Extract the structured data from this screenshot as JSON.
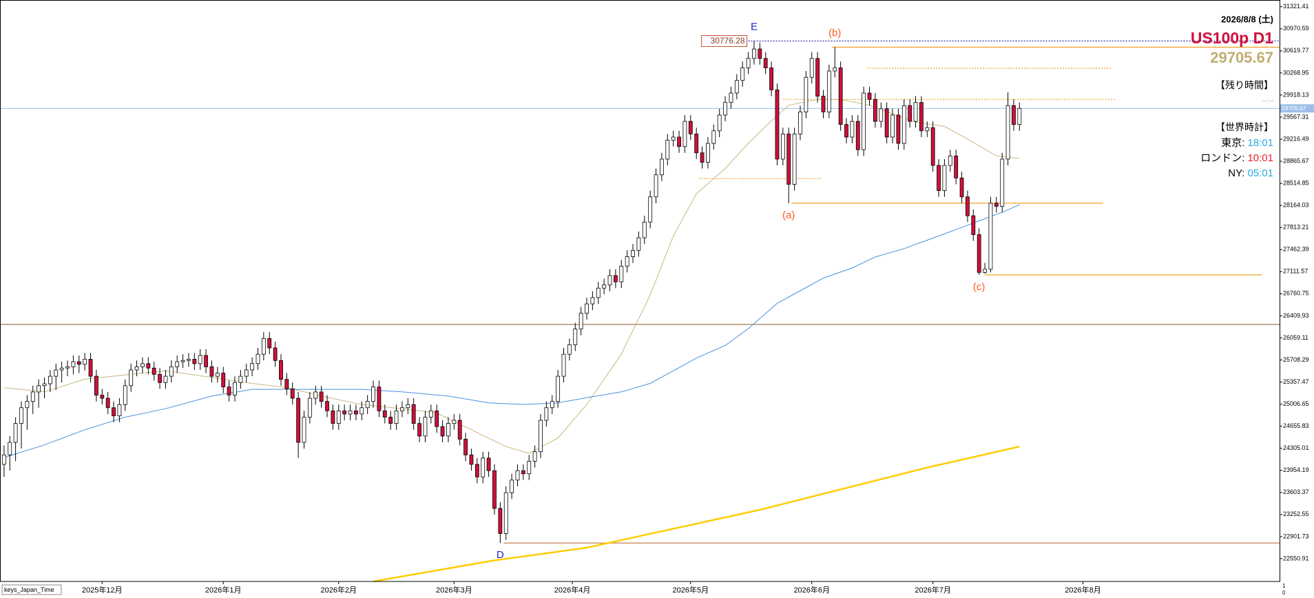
{
  "chart_data": {
    "type": "candlestick",
    "symbol": "US100p D1",
    "date": "2026/8/8 (土)",
    "up_color": "#ffffff",
    "down_color": "#d0103a",
    "last_price_color": "#9dbfe9",
    "xlim": [
      -0.7,
      221.2
    ],
    "xticks": [
      {
        "value": 17,
        "label": "2025年12月"
      },
      {
        "value": 38,
        "label": "2026年1月"
      },
      {
        "value": 58,
        "label": "2026年2月"
      },
      {
        "value": 78,
        "label": "2026年3月"
      },
      {
        "value": 98.5,
        "label": "2026年4月"
      },
      {
        "value": 119,
        "label": "2026年5月"
      },
      {
        "value": 140,
        "label": "2026年6月"
      },
      {
        "value": 161,
        "label": "2026年7月"
      },
      {
        "value": 187,
        "label": "2026年8月"
      }
    ],
    "ylim": [
      22189,
      31428
    ],
    "yticks": [
      31321.41,
      30970.59,
      30619.77,
      30268.95,
      29918.13,
      29567.31,
      29216.49,
      28865.67,
      28514.85,
      28164.03,
      27813.21,
      27462.39,
      27111.57,
      26760.75,
      26409.93,
      26059.11,
      25708.29,
      25357.47,
      25006.65,
      24655.83,
      24305.01,
      23954.19,
      23603.37,
      23252.55,
      22901.73,
      22550.91
    ],
    "open": [
      24050,
      24200,
      24400,
      24700,
      24950,
      25050,
      25200,
      25300,
      25330,
      25450,
      25550,
      25580,
      25600,
      25680,
      25640,
      25720,
      25450,
      25150,
      25100,
      24950,
      24820,
      25000,
      25300,
      25550,
      25600,
      25650,
      25580,
      25480,
      25350,
      25450,
      25600,
      25680,
      25700,
      25720,
      25650,
      25780,
      25600,
      25450,
      25500,
      25280,
      25150,
      25350,
      25450,
      25550,
      25650,
      25800,
      26050,
      25900,
      25700,
      25400,
      25250,
      25100,
      24400,
      24800,
      25100,
      25200,
      25050,
      24900,
      24700,
      24900,
      24850,
      24900,
      24850,
      24950,
      25050,
      25280,
      24900,
      24800,
      24700,
      24900,
      24950,
      25000,
      24700,
      24500,
      24800,
      24900,
      24650,
      24500,
      24700,
      24750,
      24450,
      24200,
      24050,
      23850,
      24150,
      23950,
      23350,
      22950,
      23600,
      23800,
      23950,
      23900,
      24100,
      24250,
      24750,
      24950,
      25050,
      25450,
      25800,
      25950,
      26200,
      26450,
      26600,
      26700,
      26850,
      26900,
      27050,
      26950,
      27200,
      27350,
      27450,
      27650,
      27900,
      28300,
      28650,
      28900,
      29200,
      29250,
      29100,
      29500,
      29300,
      29000,
      28850,
      29150,
      29350,
      29600,
      29800,
      29950,
      30150,
      30350,
      30500,
      30650,
      30500,
      30350,
      30000,
      28900,
      29300,
      28500,
      29300,
      29650,
      30200,
      30500,
      29900,
      29650,
      30300,
      30350,
      29450,
      29250,
      29500,
      29050,
      29950,
      29850,
      29500,
      29700,
      29250,
      29600,
      29150,
      29750,
      29500,
      29800,
      29350,
      29400,
      28800,
      28400,
      28800,
      28950,
      28600,
      28300,
      28000,
      27700,
      27100,
      27150,
      28200,
      28150,
      28900,
      29750,
      29450
    ],
    "high": [
      24350,
      24500,
      24800,
      25050,
      25150,
      25300,
      25400,
      25430,
      25550,
      25650,
      25680,
      25700,
      25780,
      25780,
      25820,
      25820,
      25550,
      25250,
      25200,
      25050,
      25100,
      25400,
      25650,
      25700,
      25750,
      25750,
      25680,
      25580,
      25550,
      25700,
      25780,
      25800,
      25820,
      25820,
      25880,
      25880,
      25700,
      25600,
      25600,
      25380,
      25450,
      25550,
      25650,
      25750,
      25900,
      26150,
      26150,
      26000,
      25800,
      25500,
      25350,
      25200,
      24900,
      25200,
      25300,
      25300,
      25150,
      25000,
      25000,
      25000,
      25000,
      25000,
      25050,
      25150,
      25380,
      25380,
      25000,
      24900,
      25000,
      25050,
      25100,
      25100,
      24800,
      24900,
      25000,
      25000,
      24750,
      24800,
      24850,
      24850,
      24550,
      24300,
      24150,
      24250,
      24250,
      24050,
      23450,
      23700,
      23900,
      24050,
      24050,
      24200,
      24350,
      24850,
      25050,
      25150,
      25550,
      25900,
      26050,
      26300,
      26550,
      26700,
      26800,
      26950,
      27000,
      27150,
      27150,
      27300,
      27450,
      27550,
      27750,
      28000,
      28400,
      28750,
      29000,
      29300,
      29350,
      29350,
      29600,
      29600,
      29400,
      29100,
      29250,
      29450,
      29700,
      29900,
      30050,
      30250,
      30450,
      30600,
      30776.28,
      30750,
      30600,
      30450,
      30100,
      29400,
      29400,
      29400,
      29750,
      30300,
      30600,
      30600,
      30000,
      30400,
      30678,
      30450,
      29550,
      29600,
      29600,
      30050,
      30050,
      29950,
      29800,
      29800,
      29700,
      29700,
      29850,
      29850,
      29900,
      29900,
      29500,
      29500,
      28900,
      28900,
      29050,
      29050,
      28700,
      28400,
      28100,
      27800,
      27250,
      28300,
      28300,
      29000,
      29960,
      29850,
      29800
    ],
    "low": [
      23850,
      23950,
      24100,
      24300,
      24600,
      24850,
      24950,
      25100,
      25200,
      25230,
      25350,
      25450,
      25480,
      25500,
      25540,
      25350,
      25050,
      25000,
      24850,
      24720,
      24720,
      24900,
      25200,
      25450,
      25500,
      25480,
      25380,
      25250,
      25250,
      25350,
      25500,
      25580,
      25600,
      25550,
      25550,
      25500,
      25350,
      25350,
      25180,
      25050,
      25050,
      25250,
      25350,
      25450,
      25550,
      25700,
      25800,
      25600,
      25300,
      25150,
      25000,
      24150,
      24300,
      24700,
      25000,
      24950,
      24800,
      24600,
      24600,
      24750,
      24750,
      24750,
      24750,
      24850,
      24950,
      24800,
      24700,
      24600,
      24600,
      24800,
      24850,
      24600,
      24400,
      24400,
      24700,
      24550,
      24400,
      24400,
      24600,
      24350,
      24100,
      23950,
      23750,
      23750,
      23850,
      23250,
      22800,
      22850,
      23500,
      23700,
      23800,
      23800,
      24000,
      24150,
      24650,
      24850,
      24950,
      25350,
      25700,
      25850,
      26100,
      26350,
      26500,
      26600,
      26750,
      26800,
      26850,
      26850,
      27100,
      27250,
      27350,
      27550,
      27800,
      28200,
      28550,
      28800,
      29100,
      29000,
      29000,
      29200,
      28900,
      28750,
      28750,
      29050,
      29250,
      29500,
      29700,
      29850,
      30050,
      30250,
      30400,
      30400,
      30250,
      29900,
      28800,
      28800,
      28200,
      28400,
      29200,
      29550,
      30100,
      29800,
      29550,
      29550,
      30200,
      29350,
      29150,
      29150,
      28950,
      28950,
      29750,
      29400,
      29400,
      29150,
      29150,
      29050,
      29050,
      29400,
      29400,
      29250,
      29250,
      28700,
      28300,
      28300,
      28700,
      28500,
      28200,
      27900,
      27600,
      27060,
      27080,
      27100,
      28050,
      28050,
      28800,
      29350,
      29350
    ],
    "close": [
      24200,
      24400,
      24700,
      24950,
      25050,
      25200,
      25300,
      25330,
      25450,
      25550,
      25580,
      25600,
      25680,
      25640,
      25720,
      25450,
      25150,
      25100,
      24950,
      24820,
      25000,
      25300,
      25550,
      25600,
      25650,
      25580,
      25480,
      25350,
      25450,
      25600,
      25680,
      25700,
      25720,
      25650,
      25780,
      25600,
      25450,
      25500,
      25280,
      25150,
      25350,
      25450,
      25550,
      25650,
      25800,
      26050,
      25900,
      25700,
      25400,
      25250,
      25100,
      24400,
      24800,
      25100,
      25200,
      25050,
      24900,
      24700,
      24900,
      24850,
      24900,
      24850,
      24950,
      25050,
      25280,
      24900,
      24800,
      24700,
      24900,
      24950,
      25000,
      24700,
      24500,
      24800,
      24900,
      24650,
      24500,
      24700,
      24750,
      24450,
      24200,
      24050,
      23850,
      24150,
      23950,
      23350,
      22950,
      23600,
      23800,
      23950,
      23900,
      24100,
      24250,
      24750,
      24950,
      25050,
      25450,
      25800,
      25950,
      26200,
      26450,
      26600,
      26700,
      26850,
      26900,
      27050,
      26950,
      27200,
      27350,
      27450,
      27650,
      27900,
      28300,
      28650,
      28900,
      29200,
      29250,
      29100,
      29500,
      29300,
      29000,
      28850,
      29150,
      29350,
      29600,
      29800,
      29950,
      30150,
      30350,
      30500,
      30650,
      30500,
      30350,
      30000,
      28900,
      29300,
      28500,
      29300,
      29650,
      30200,
      30500,
      29900,
      29650,
      30300,
      30350,
      29450,
      29250,
      29500,
      29050,
      29950,
      29850,
      29500,
      29700,
      29250,
      29600,
      29150,
      29750,
      29500,
      29800,
      29350,
      29400,
      28800,
      28400,
      28800,
      28950,
      28600,
      28300,
      28000,
      27700,
      27100,
      27150,
      28200,
      28150,
      28900,
      29750,
      29450,
      29705.67
    ],
    "moving_averages": [
      {
        "color": "#c9b57c",
        "width": 1,
        "x": [
          0,
          7,
          14,
          21,
          28,
          36,
          43,
          49,
          55,
          62,
          69,
          75,
          81,
          87,
          91,
          96,
          101,
          107,
          112,
          116,
          120,
          125,
          129,
          132,
          136,
          141,
          145,
          150,
          154,
          158,
          163,
          167,
          172,
          176
        ],
        "values": [
          25269,
          25202,
          25403,
          25470,
          25537,
          25430,
          25336,
          25269,
          25135,
          25001,
          24934,
          24867,
          24600,
          24332,
          24225,
          24466,
          25001,
          25805,
          26742,
          27679,
          28349,
          28750,
          29152,
          29420,
          29755,
          29848,
          29848,
          29755,
          29621,
          29487,
          29420,
          29219,
          28951,
          28911
        ]
      },
      {
        "color": "#4a8fe0",
        "width": 1,
        "x": [
          0,
          7,
          14,
          21,
          28,
          36,
          43,
          49,
          55,
          62,
          69,
          77,
          84,
          90,
          96,
          101,
          107,
          112,
          116,
          120,
          125,
          129,
          134,
          138,
          142,
          147,
          151,
          156,
          160,
          164,
          169,
          173,
          176
        ],
        "values": [
          24158,
          24359,
          24600,
          24800,
          24934,
          25135,
          25242,
          25242,
          25242,
          25242,
          25202,
          25135,
          25028,
          25001,
          25028,
          25108,
          25202,
          25336,
          25537,
          25738,
          25939,
          26206,
          26608,
          26809,
          27010,
          27170,
          27345,
          27478,
          27612,
          27746,
          27920,
          28054,
          28175
        ]
      },
      {
        "color": "#ffcc00",
        "width": 2.5,
        "x": [
          64,
          85,
          101,
          131,
          160,
          176
        ],
        "values": [
          22189,
          22524,
          22725,
          23328,
          23998,
          24332
        ]
      }
    ],
    "levels": [
      {
        "value": 30776.28,
        "x": [
          129,
          221.2
        ],
        "color": "#2a2ab0",
        "style": "dotted",
        "label": true
      },
      {
        "value": 30678,
        "x": [
          143.5,
          221.2
        ],
        "color": "#f0a020",
        "style": "solid",
        "label": false
      },
      {
        "value": 30344,
        "x": [
          149.6,
          192
        ],
        "color": "#f0a020",
        "style": "dotted",
        "label": false
      },
      {
        "value": 29848,
        "x": [
          135,
          192.7
        ],
        "color": "#f0a020",
        "style": "dotted",
        "label": false
      },
      {
        "value": 28590,
        "x": [
          120.4,
          141.6
        ],
        "color": "#f0a020",
        "style": "dotted",
        "label": false
      },
      {
        "value": 28200,
        "x": [
          136.5,
          190.5
        ],
        "color": "#f0a020",
        "style": "solid",
        "label": false
      },
      {
        "value": 27060,
        "x": [
          170,
          218
        ],
        "color": "#f0a020",
        "style": "solid",
        "label": false
      },
      {
        "value": 26273,
        "x": [
          -0.7,
          221.2
        ],
        "color": "#9a6a3a",
        "style": "solid",
        "label": false
      },
      {
        "value": 22800,
        "x": [
          86.6,
          221.2
        ],
        "color": "#c0703a",
        "style": "solid",
        "label": false
      }
    ],
    "annotations": [
      {
        "text": "E",
        "bar": 130,
        "at": "high",
        "color": "#1c1cd0"
      },
      {
        "text": "(b)",
        "bar": 144,
        "at": "high",
        "color": "#ff5a1f"
      },
      {
        "text": "(a)",
        "bar": 136,
        "at": "low",
        "color": "#ff5a1f"
      },
      {
        "text": "(c)",
        "bar": 169,
        "at": "low",
        "color": "#ff5a1f"
      },
      {
        "text": "D",
        "bar": 86,
        "at": "low",
        "color": "#1c1cd0"
      }
    ]
  },
  "panel": {
    "remaining_title": "【残り時間】",
    "remaining": "--:--",
    "clock_title": "【世界時計】",
    "clocks": [
      {
        "city": "東京:",
        "time": "18:01",
        "color": "#2aa8e0"
      },
      {
        "city": "ロンドン:",
        "time": "10:01",
        "color": "#e8202a"
      },
      {
        "city": "NY:",
        "time": "05:01",
        "color": "#2aa8e0"
      }
    ]
  },
  "footer_label": "keys_Japan_Time",
  "axis_corner": [
    "1",
    "0"
  ]
}
